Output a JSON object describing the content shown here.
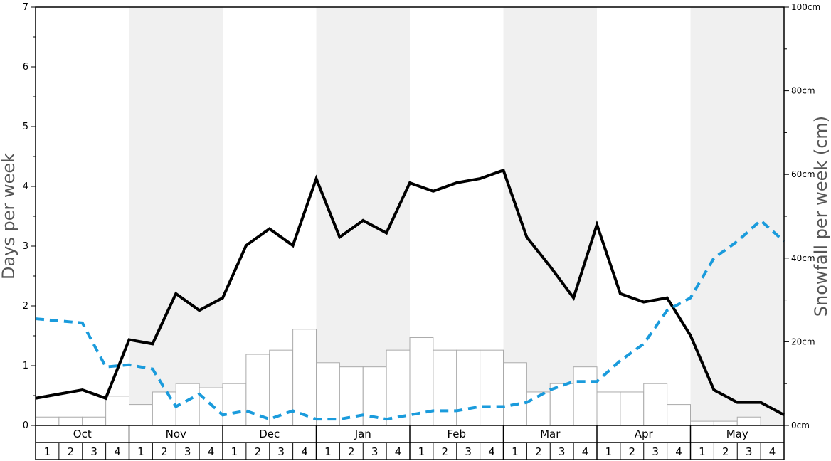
{
  "chart_data": {
    "type": "bar",
    "ylabel": "Days per week",
    "y2label": "Snowfall per week (cm)",
    "ylim": [
      0,
      7
    ],
    "y2lim": [
      0,
      100
    ],
    "y_ticks": [
      "0",
      "1",
      "2",
      "3",
      "4",
      "5",
      "6",
      "7"
    ],
    "y2_ticks": [
      "0cm",
      "20cm",
      "40cm",
      "60cm",
      "80cm",
      "100cm"
    ],
    "months": [
      "Oct",
      "Nov",
      "Dec",
      "Jan",
      "Feb",
      "Mar",
      "Apr",
      "May"
    ],
    "weeks": [
      "1",
      "2",
      "3",
      "4"
    ],
    "shaded_months": [
      "Nov",
      "Jan",
      "Mar",
      "May"
    ],
    "series": [
      {
        "type": "bar",
        "axis": "left",
        "color": "#aaaaaa",
        "values": [
          0.14,
          0.14,
          0.14,
          0.49,
          0.35,
          0.56,
          0.7,
          0.63,
          0.7,
          1.19,
          1.26,
          1.61,
          1.05,
          0.98,
          0.98,
          1.26,
          1.47,
          1.26,
          1.26,
          1.26,
          1.05,
          0.56,
          0.7,
          0.98,
          0.56,
          0.56,
          0.7,
          0.35,
          0.07,
          0.07,
          0.14,
          0.0
        ]
      },
      {
        "type": "line",
        "axis": "right",
        "color": "#000000",
        "style": "solid",
        "values": [
          6.5,
          7.5,
          8.5,
          6.5,
          20.5,
          19.5,
          31.5,
          27.5,
          30.5,
          43,
          47,
          43,
          59,
          45,
          49,
          46,
          58,
          56,
          58,
          59,
          61,
          45,
          38,
          30.5,
          48,
          31.5,
          29.5,
          30.5,
          21.5,
          8.5,
          5.5,
          5.5,
          2.5
        ]
      },
      {
        "type": "line",
        "axis": "right",
        "color": "#1a9bdc",
        "style": "dashed",
        "values": [
          25.5,
          25,
          24.5,
          14,
          14.5,
          13.5,
          4.5,
          7.5,
          2.5,
          3.5,
          1.5,
          3.5,
          1.5,
          1.5,
          2.5,
          1.5,
          2.5,
          3.5,
          3.5,
          4.5,
          4.5,
          5.5,
          8.5,
          10.5,
          10.5,
          15.5,
          19.5,
          27.5,
          30.5,
          40,
          44,
          49,
          44
        ]
      }
    ]
  }
}
